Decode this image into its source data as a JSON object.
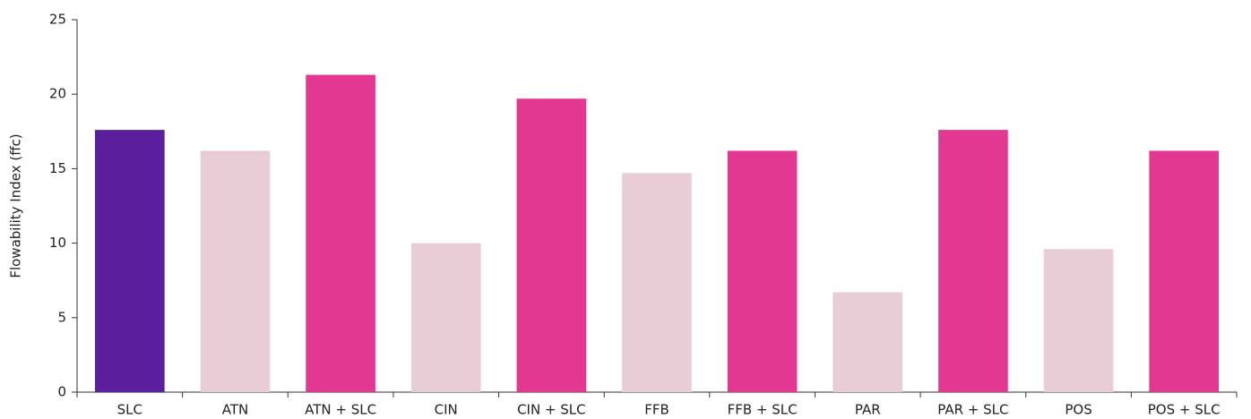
{
  "chart_data": {
    "type": "bar",
    "y_label": "Flowability Index (ffc)",
    "categories": [
      "SLC",
      "ATN",
      "ATN + SLC",
      "CIN",
      "CIN + SLC",
      "FFB",
      "FFB + SLC",
      "PAR",
      "PAR + SLC",
      "POS",
      "POS + SLC"
    ],
    "values": [
      17.6,
      16.2,
      21.3,
      10.0,
      19.7,
      14.7,
      16.2,
      6.7,
      17.6,
      9.6,
      16.2
    ],
    "colors": [
      "#5b1f9e",
      "#e9cdd6",
      "#e33891",
      "#e9cdd6",
      "#e33891",
      "#e9cdd6",
      "#e33891",
      "#e9cdd6",
      "#e33891",
      "#e9cdd6",
      "#e33891"
    ],
    "ylim": [
      0,
      25
    ],
    "yticks": [
      0,
      5,
      10,
      15,
      20,
      25
    ],
    "grid": false
  }
}
